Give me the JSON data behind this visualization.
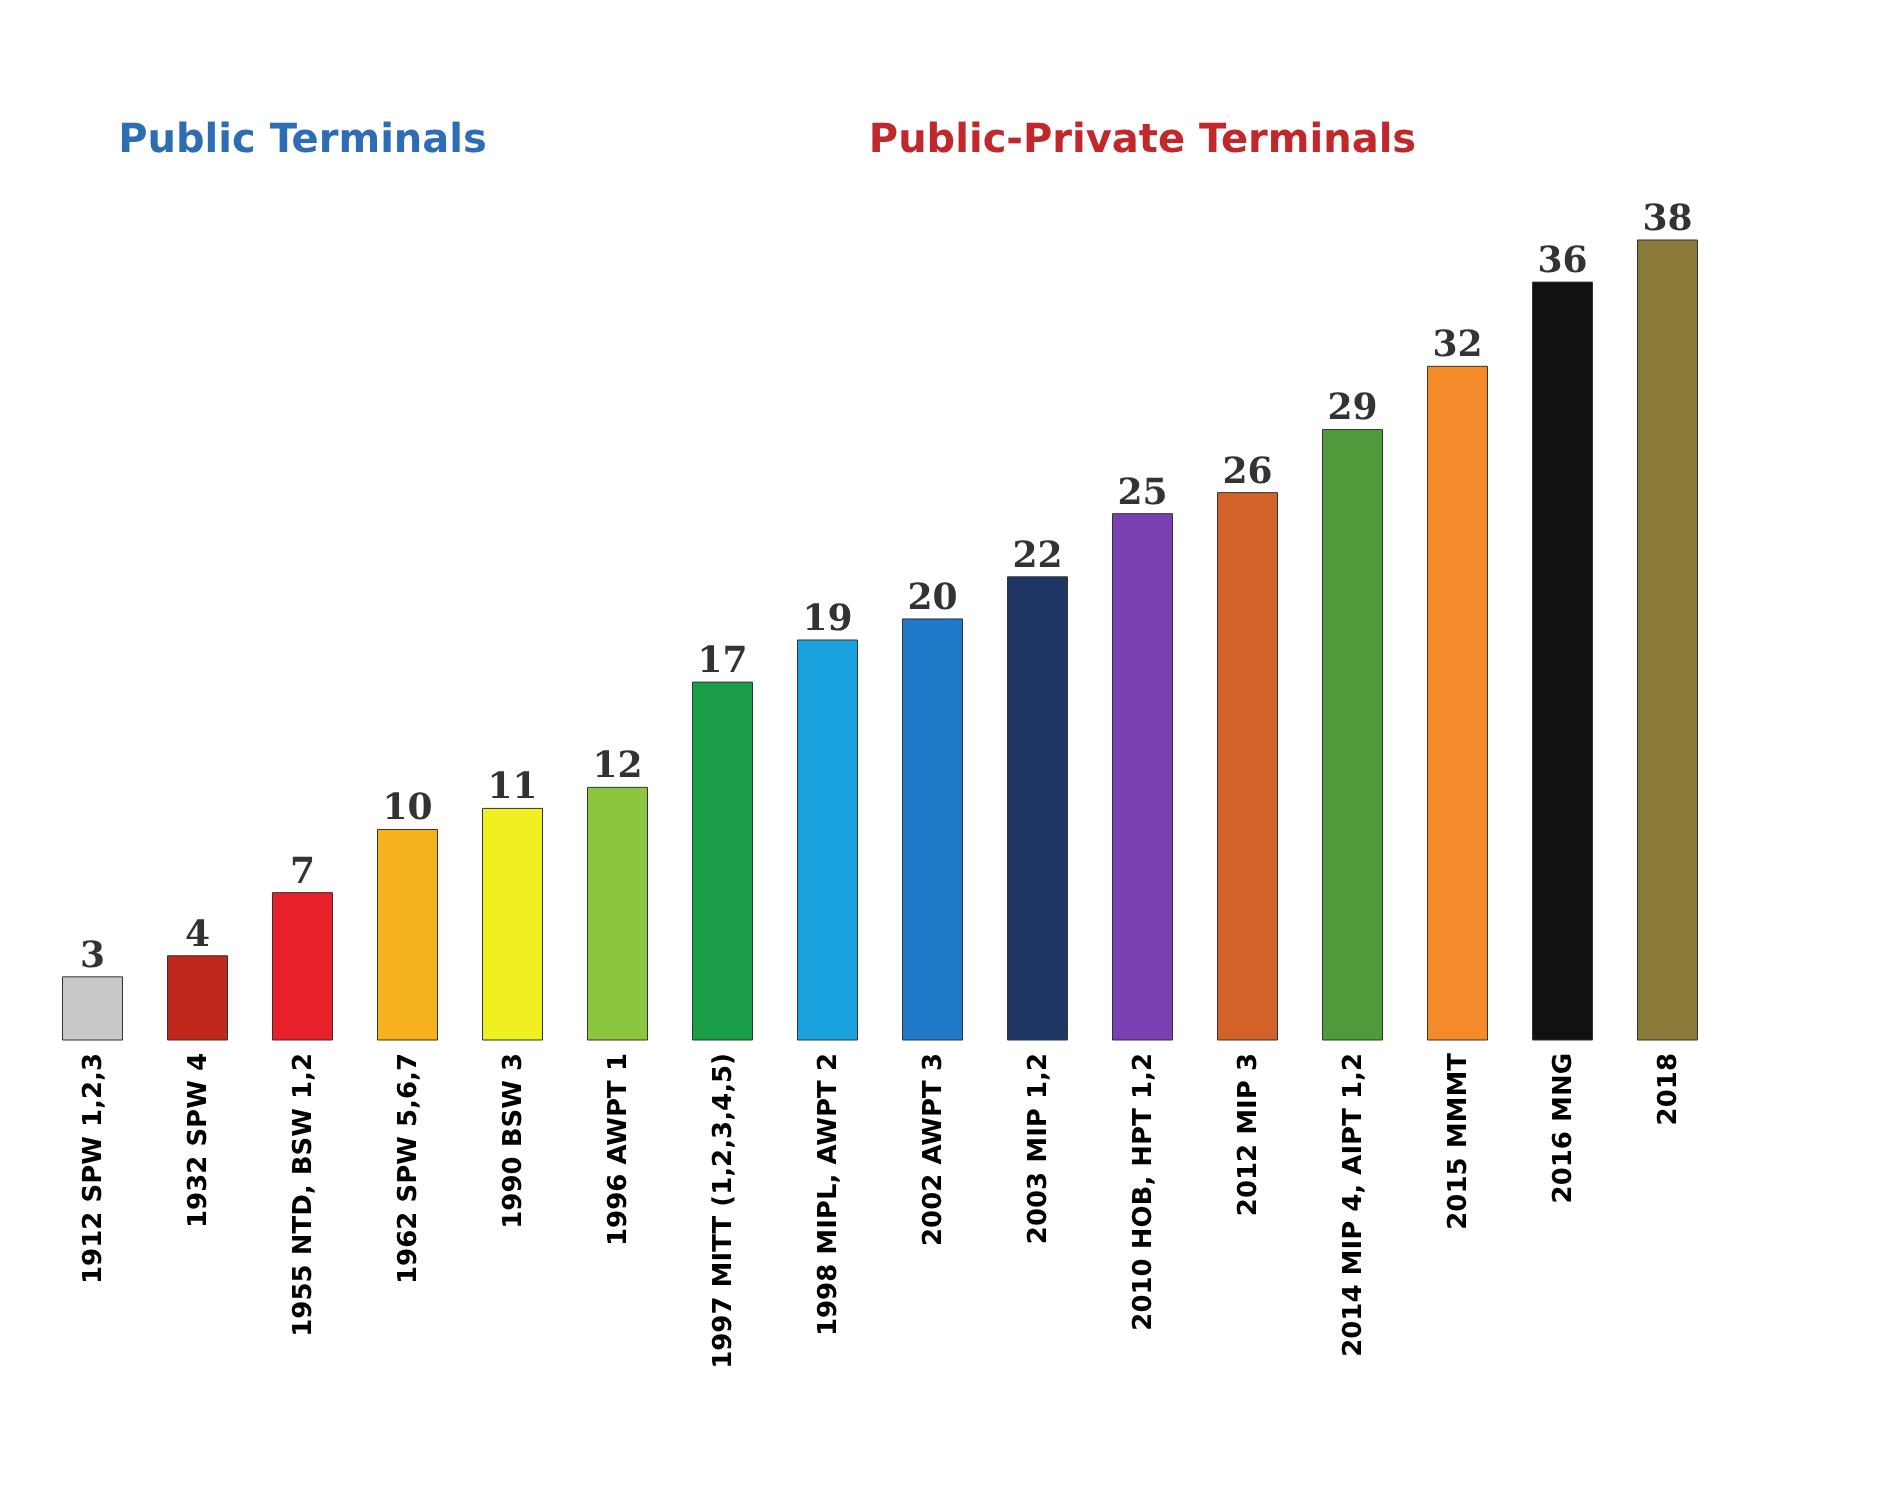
{
  "chart_data": {
    "type": "bar",
    "categories": [
      "1912 SPW 1,2,3",
      "1932 SPW 4",
      "1955 NTD, BSW 1,2",
      "1962 SPW 5,6,7",
      "1990 BSW 3",
      "1996 AWPT 1",
      "1997 MITT (1,2,3,4,5)",
      "1998 MIPL, AWPT 2",
      "2002 AWPT 3",
      "2003 MIP 1,2",
      "2010 HOB, HPT 1,2",
      "2012 MIP 3",
      "2014 MIP 4, AIPT 1,2",
      "2015 MMMT",
      "2016 MNG",
      "2018"
    ],
    "values": [
      3,
      4,
      7,
      10,
      11,
      12,
      17,
      19,
      20,
      22,
      25,
      26,
      29,
      32,
      36,
      38
    ],
    "colors": [
      "#c8c8c8",
      "#c0281c",
      "#e8202a",
      "#f5b21c",
      "#f0f020",
      "#8cc63f",
      "#1a9e48",
      "#1ba3e0",
      "#1f78c8",
      "#1f3564",
      "#7a3fb0",
      "#d2622a",
      "#4f9a3a",
      "#f58a2a",
      "#111111",
      "#8a7a3a"
    ],
    "data_labels": true,
    "grid": false,
    "legend": false,
    "tick_labels": "x",
    "annotations": [
      "Public Terminals",
      "Public-Private Terminals"
    ]
  }
}
